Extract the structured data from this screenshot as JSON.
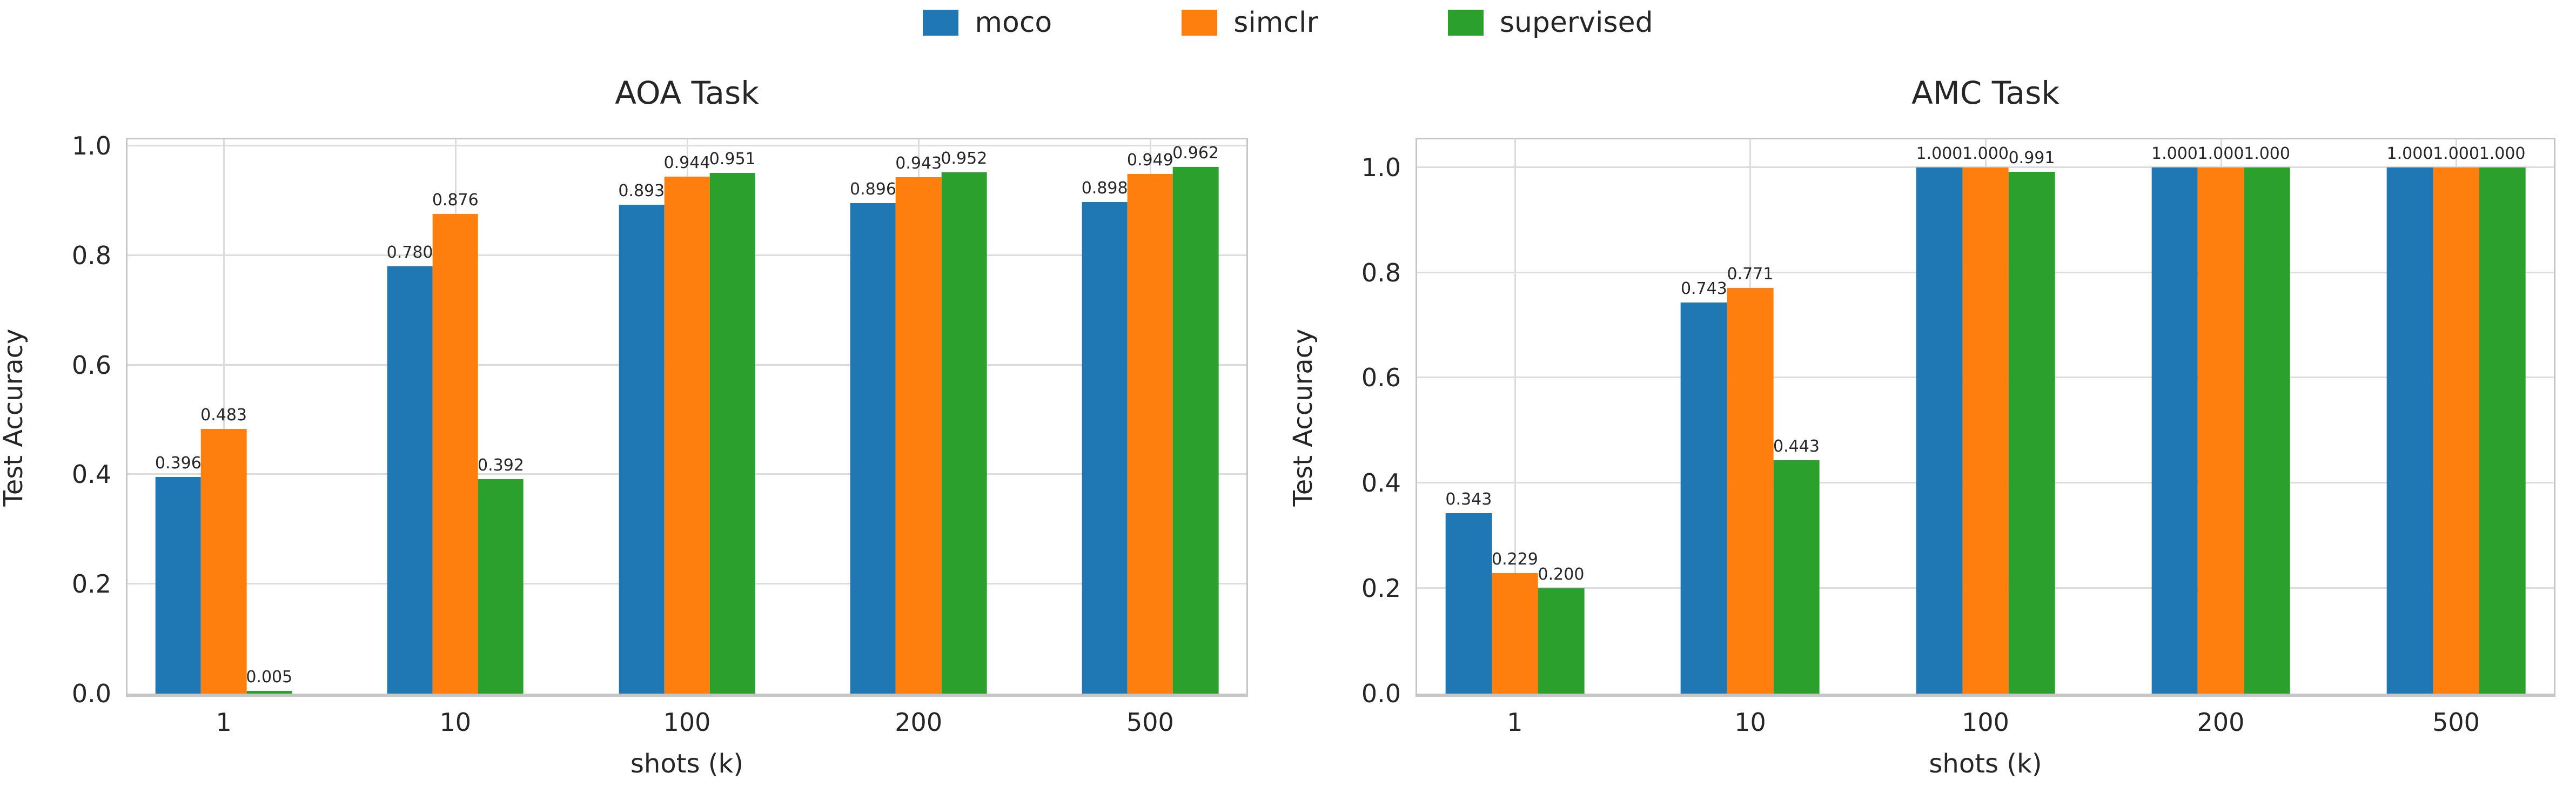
{
  "figure": {
    "background": "#ffffff",
    "text_color": "#262626",
    "grid_color": "#dcdcdc",
    "spine_color": "#c6c6c6"
  },
  "legend": {
    "position": "top-center",
    "items": [
      {
        "label": "moco",
        "color": "#1f77b4"
      },
      {
        "label": "simclr",
        "color": "#ff7f0e"
      },
      {
        "label": "supervised",
        "color": "#2ca02c"
      }
    ]
  },
  "chart_data": [
    {
      "type": "bar",
      "title": "AOA Task",
      "xlabel": "shots (k)",
      "ylabel": "Test Accuracy",
      "categories": [
        "1",
        "10",
        "100",
        "200",
        "500"
      ],
      "yticks": [
        0.0,
        0.2,
        0.4,
        0.6,
        0.8,
        1.0
      ],
      "ytick_labels": [
        "0.0",
        "0.2",
        "0.4",
        "0.6",
        "0.8",
        "1.0"
      ],
      "ylim": [
        0,
        1.012
      ],
      "grid": true,
      "series": [
        {
          "name": "moco",
          "color": "#1f77b4",
          "values": [
            0.396,
            0.78,
            0.893,
            0.896,
            0.898
          ],
          "labels": [
            "0.396",
            "0.780",
            "0.893",
            "0.896",
            "0.898"
          ]
        },
        {
          "name": "simclr",
          "color": "#ff7f0e",
          "values": [
            0.483,
            0.876,
            0.944,
            0.943,
            0.949
          ],
          "labels": [
            "0.483",
            "0.876",
            "0.944",
            "0.943",
            "0.949"
          ]
        },
        {
          "name": "supervised",
          "color": "#2ca02c",
          "values": [
            0.005,
            0.392,
            0.951,
            0.952,
            0.962
          ],
          "labels": [
            "0.005",
            "0.392",
            "0.951",
            "0.952",
            "0.962"
          ]
        }
      ]
    },
    {
      "type": "bar",
      "title": "AMC Task",
      "xlabel": "shots (k)",
      "ylabel": "Test Accuracy",
      "categories": [
        "1",
        "10",
        "100",
        "200",
        "500"
      ],
      "yticks": [
        0.0,
        0.2,
        0.4,
        0.6,
        0.8,
        1.0
      ],
      "ytick_labels": [
        "0.0",
        "0.2",
        "0.4",
        "0.6",
        "0.8",
        "1.0"
      ],
      "ylim": [
        0,
        1.053
      ],
      "grid": true,
      "series": [
        {
          "name": "moco",
          "color": "#1f77b4",
          "values": [
            0.343,
            0.743,
            1.0,
            1.0,
            1.0
          ],
          "labels": [
            "0.343",
            "0.743",
            "1.000",
            "1.000",
            "1.000"
          ]
        },
        {
          "name": "simclr",
          "color": "#ff7f0e",
          "values": [
            0.229,
            0.771,
            1.0,
            1.0,
            1.0
          ],
          "labels": [
            "0.229",
            "0.771",
            "1.000",
            "1.000",
            "1.000"
          ]
        },
        {
          "name": "supervised",
          "color": "#2ca02c",
          "values": [
            0.2,
            0.443,
            0.991,
            1.0,
            1.0
          ],
          "labels": [
            "0.200",
            "0.443",
            "0.991",
            "1.000",
            "1.000"
          ]
        }
      ]
    }
  ]
}
